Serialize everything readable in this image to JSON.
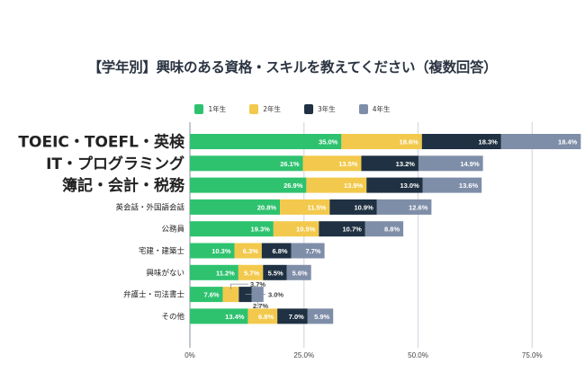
{
  "chart_data": {
    "type": "bar",
    "orientation": "horizontal",
    "stacked": true,
    "title": "【学年別】興味のある資格・スキルを教えてください（複数回答）",
    "xlabel": "",
    "ylabel": "",
    "xlim": [
      0,
      90
    ],
    "x_ticks": [
      "0%",
      "25.0%",
      "50.0%",
      "75.0%"
    ],
    "x_tick_values": [
      0,
      25,
      50,
      75
    ],
    "grid": true,
    "legend_position": "top-center",
    "categories": [
      "TOEIC・TOEFL・英検",
      "IT・プログラミング",
      "簿記・会計・税務",
      "英会話・外国語会話",
      "公務員",
      "宅建・建築士",
      "興味がない",
      "弁護士・司法書士",
      "その他"
    ],
    "highlighted_categories": [
      0,
      1,
      2
    ],
    "series": [
      {
        "name": "1年生",
        "color": "#2ec26f",
        "values": [
          35.0,
          26.1,
          26.9,
          20.8,
          19.3,
          10.3,
          11.2,
          7.6,
          13.4
        ]
      },
      {
        "name": "2年生",
        "color": "#f2c94c",
        "values": [
          18.6,
          13.5,
          13.9,
          11.5,
          10.5,
          6.3,
          5.7,
          3.7,
          6.8
        ]
      },
      {
        "name": "3年生",
        "color": "#1f3142",
        "values": [
          18.3,
          13.2,
          13.0,
          10.9,
          10.7,
          6.8,
          5.5,
          3.0,
          7.0
        ]
      },
      {
        "name": "4年生",
        "color": "#7f8ea8",
        "values": [
          18.4,
          14.9,
          13.6,
          12.6,
          8.8,
          7.7,
          5.6,
          2.7,
          5.9
        ]
      }
    ],
    "data_labels": [
      [
        "35.0%",
        "18.6%",
        "18.3%",
        "18.4%"
      ],
      [
        "26.1%",
        "13.5%",
        "13.2%",
        "14.9%"
      ],
      [
        "26.9%",
        "13.9%",
        "13.0%",
        "13.6%"
      ],
      [
        "20.8%",
        "11.5%",
        "10.9%",
        "12.6%"
      ],
      [
        "19.3%",
        "10.5%",
        "10.7%",
        "8.8%"
      ],
      [
        "10.3%",
        "6.3%",
        "6.8%",
        "7.7%"
      ],
      [
        "11.2%",
        "5.7%",
        "5.5%",
        "5.6%"
      ],
      [
        "7.6%",
        "3.7%",
        "3.0%",
        "2.7%"
      ],
      [
        "13.4%",
        "6.8%",
        "7.0%",
        "5.9%"
      ]
    ],
    "callout_labels": {
      "category_index": 7,
      "series_indices": [
        1,
        2,
        3
      ]
    }
  }
}
